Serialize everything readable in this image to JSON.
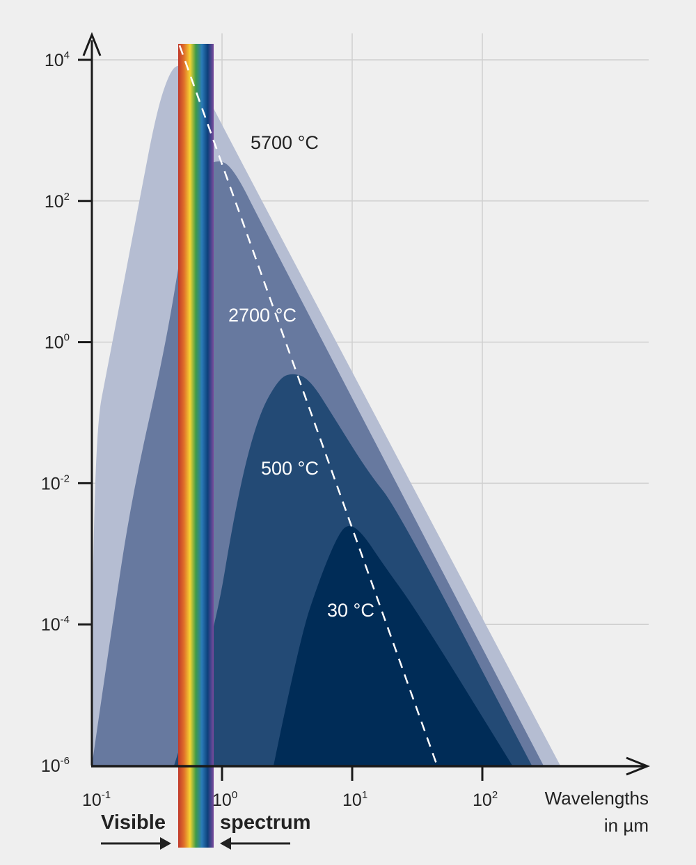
{
  "chart_data": {
    "type": "area",
    "title": "",
    "xlabel": "Wavelengths\nin µm",
    "xlabel_lines": [
      "Wavelengths",
      "in µm"
    ],
    "ylabel": "",
    "x_scale": "log",
    "y_scale": "log",
    "xlim": [
      0.1,
      1000
    ],
    "ylim": [
      1e-06,
      10000
    ],
    "grid": true,
    "x_ticks": [
      {
        "value": 0.1,
        "base": "10",
        "exp": "-1"
      },
      {
        "value": 1,
        "base": "10",
        "exp": "0"
      },
      {
        "value": 10,
        "base": "10",
        "exp": "1"
      },
      {
        "value": 100,
        "base": "10",
        "exp": "2"
      }
    ],
    "y_ticks": [
      {
        "value": 10000,
        "base": "10",
        "exp": "4"
      },
      {
        "value": 100,
        "base": "10",
        "exp": "2"
      },
      {
        "value": 1,
        "base": "10",
        "exp": "0"
      },
      {
        "value": 0.01,
        "base": "10",
        "exp": "-2"
      },
      {
        "value": 0.0001,
        "base": "10",
        "exp": "-4"
      },
      {
        "value": 1e-06,
        "base": "10",
        "exp": "-6"
      }
    ],
    "series": [
      {
        "name": "5700 °C",
        "color": "#b5bdd2",
        "label_color": "#222222",
        "points": [
          [
            0.1,
            1e-06
          ],
          [
            0.1,
            0.031
          ],
          [
            0.141,
            0.83
          ],
          [
            0.231,
            97
          ],
          [
            0.314,
            1860
          ],
          [
            0.402,
            7270
          ],
          [
            0.483,
            8730
          ],
          [
            0.618,
            7270
          ],
          [
            0.791,
            2630
          ],
          [
            397,
            1e-06
          ]
        ]
      },
      {
        "name": "2700 °C",
        "color": "#67799f",
        "label_color": "#ffffff",
        "points": [
          [
            0.1,
            1e-06
          ],
          [
            0.141,
            8.1e-05
          ],
          [
            0.204,
            0.0069
          ],
          [
            0.369,
            0.89
          ],
          [
            0.514,
            39
          ],
          [
            0.658,
            240
          ],
          [
            0.895,
            398
          ],
          [
            1.22,
            302
          ],
          [
            2.12,
            39
          ],
          [
            295,
            1e-06
          ]
        ]
      },
      {
        "name": "500 °C",
        "color": "#234a75",
        "label_color": "#ffffff",
        "points": [
          [
            0.428,
            1e-06
          ],
          [
            0.841,
            4.8e-05
          ],
          [
            1.29,
            0.0056
          ],
          [
            1.87,
            0.085
          ],
          [
            2.71,
            0.3
          ],
          [
            3.47,
            0.37
          ],
          [
            4.72,
            0.3
          ],
          [
            7.26,
            0.085
          ],
          [
            13.4,
            0.0139
          ],
          [
            22.0,
            0.0045
          ],
          [
            240,
            1e-06
          ]
        ]
      },
      {
        "name": "30 °C",
        "color": "#002c57",
        "label_color": "#ffffff",
        "points": [
          [
            2.49,
            1e-06
          ],
          [
            3.93,
            6e-05
          ],
          [
            5.67,
            0.00046
          ],
          [
            7.73,
            0.0018
          ],
          [
            9.29,
            0.0027
          ],
          [
            11.9,
            0.002
          ],
          [
            17.2,
            0.00072
          ],
          [
            31.8,
            0.00015
          ],
          [
            170,
            1e-06
          ]
        ]
      }
    ],
    "peak_line": {
      "style": "dashed",
      "color": "#ffffff",
      "points": [
        [
          0.472,
          16000
        ],
        [
          44.9,
          1e-06
        ]
      ]
    },
    "annotations": {
      "visible_left": "Visible",
      "visible_right": "spectrum",
      "spectrum_colors": [
        "#c0392b",
        "#e0702a",
        "#f5d432",
        "#3e9a48",
        "#2a7bb8",
        "#0d3f7a",
        "#7a4a9c"
      ]
    }
  }
}
